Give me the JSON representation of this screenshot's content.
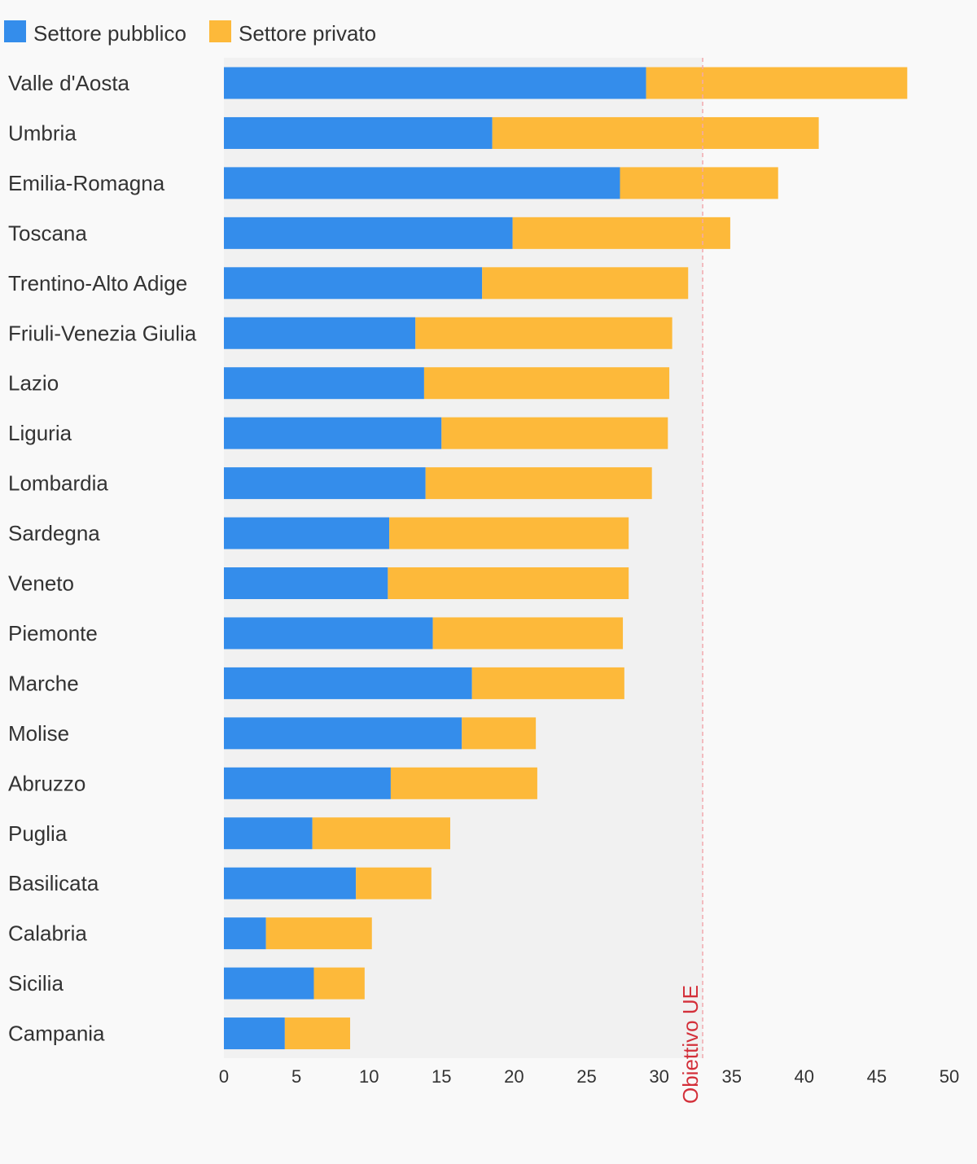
{
  "chart_data": {
    "type": "bar",
    "orientation": "horizontal",
    "stacked": true,
    "categories": [
      "Valle d'Aosta",
      "Umbria",
      "Emilia-Romagna",
      "Toscana",
      "Trentino-Alto Adige",
      "Friuli-Venezia Giulia",
      "Lazio",
      "Liguria",
      "Lombardia",
      "Sardegna",
      "Veneto",
      "Piemonte",
      "Marche",
      "Molise",
      "Abruzzo",
      "Puglia",
      "Basilicata",
      "Calabria",
      "Sicilia",
      "Campania"
    ],
    "series": [
      {
        "name": "Settore pubblico",
        "color": "#348deb",
        "values": [
          29.1,
          18.5,
          27.3,
          19.9,
          17.8,
          13.2,
          13.8,
          15.0,
          13.9,
          11.4,
          11.3,
          14.4,
          17.1,
          16.4,
          11.5,
          6.1,
          9.1,
          2.9,
          6.2,
          4.2
        ]
      },
      {
        "name": "Settore privato",
        "color": "#fdb93a",
        "values": [
          18.0,
          22.5,
          10.9,
          15.0,
          14.2,
          17.7,
          16.9,
          15.6,
          15.6,
          16.5,
          16.6,
          13.1,
          10.5,
          5.1,
          10.1,
          9.5,
          5.2,
          7.3,
          3.5,
          4.5
        ]
      }
    ],
    "xlim": [
      0,
      50
    ],
    "xticks": [
      0,
      5,
      10,
      15,
      20,
      25,
      30,
      35,
      40,
      45,
      50
    ],
    "xlabel": "",
    "ylabel": "",
    "title": "",
    "legend": "top-left",
    "grid": false,
    "reference_line": {
      "value": 33,
      "label": "Obiettivo UE",
      "color": "#d3303a"
    },
    "plot_background": "#f1f1f1"
  }
}
